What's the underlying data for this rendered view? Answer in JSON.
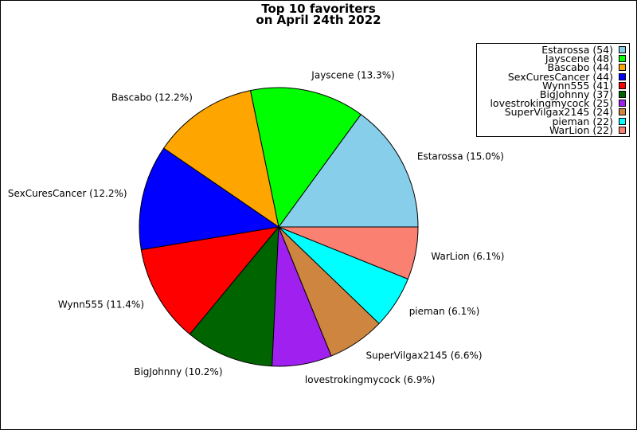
{
  "chart_data": {
    "type": "pie",
    "title_line1": "Top 10 favoriters",
    "title_line2": "on April 24th 2022",
    "legend_position": "top-right",
    "slices": [
      {
        "name": "Estarossa",
        "value": 54,
        "label": "Estarossa (15.0%)",
        "legend": "Estarossa (54)",
        "color": "#87CEEB"
      },
      {
        "name": "Jayscene",
        "value": 48,
        "label": "Jayscene (13.3%)",
        "legend": "Jayscene (48)",
        "color": "#00FF00"
      },
      {
        "name": "Bascabo",
        "value": 44,
        "label": "Bascabo (12.2%)",
        "legend": "Bascabo (44)",
        "color": "#FFA500"
      },
      {
        "name": "SexCuresCancer",
        "value": 44,
        "label": "SexCuresCancer (12.2%)",
        "legend": "SexCuresCancer (44)",
        "color": "#0000FF"
      },
      {
        "name": "Wynn555",
        "value": 41,
        "label": "Wynn555 (11.4%)",
        "legend": "Wynn555 (41)",
        "color": "#FF0000"
      },
      {
        "name": "BigJohnny",
        "value": 37,
        "label": "BigJohnny (10.2%)",
        "legend": "BigJohnny (37)",
        "color": "#006400"
      },
      {
        "name": "lovestrokingmycock",
        "value": 25,
        "label": "lovestrokingmycock (6.9%)",
        "legend": "lovestrokingmycock (25)",
        "color": "#A020F0"
      },
      {
        "name": "SuperVilgax2145",
        "value": 24,
        "label": "SuperVilgax2145 (6.6%)",
        "legend": "SuperVilgax2145 (24)",
        "color": "#CD853F"
      },
      {
        "name": "pieman",
        "value": 22,
        "label": "pieman (6.1%)",
        "legend": "pieman (22)",
        "color": "#00FFFF"
      },
      {
        "name": "WarLion",
        "value": 22,
        "label": "WarLion (6.1%)",
        "legend": "WarLion (22)",
        "color": "#FA8072"
      }
    ]
  }
}
